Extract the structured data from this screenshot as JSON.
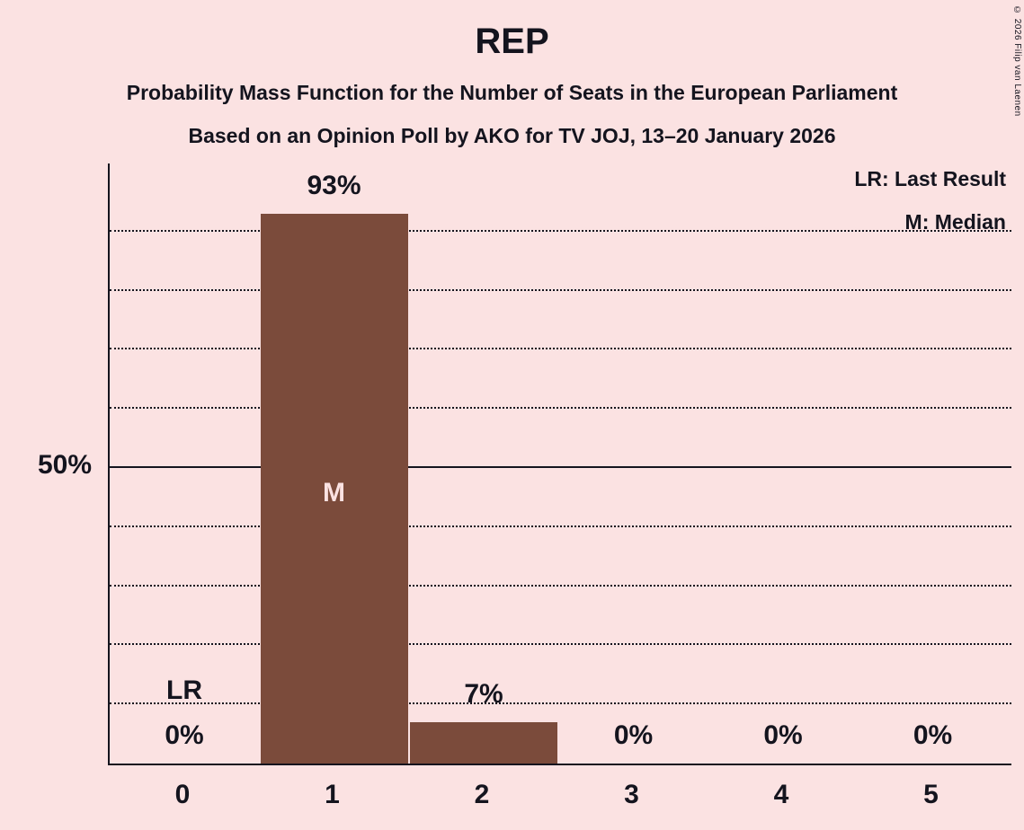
{
  "header": {
    "title": "REP",
    "subtitle1": "Probability Mass Function for the Number of Seats in the European Parliament",
    "subtitle2": "Based on an Opinion Poll by AKO for TV JOJ, 13–20 January 2026"
  },
  "legend": {
    "lr": "LR: Last Result",
    "m": "M: Median"
  },
  "y_axis_label": "50%",
  "copyright": "© 2026 Filip van Laenen",
  "chart_data": {
    "type": "bar",
    "title": "REP",
    "categories": [
      "0",
      "1",
      "2",
      "3",
      "4",
      "5"
    ],
    "values": [
      0,
      93,
      7,
      0,
      0,
      0
    ],
    "value_labels": [
      "0%",
      "93%",
      "7%",
      "0%",
      "0%",
      "0%"
    ],
    "annotations": [
      {
        "category": "0",
        "label": "LR"
      },
      {
        "category": "1",
        "label": "M"
      }
    ],
    "ylim": [
      0,
      100
    ],
    "gridlines_percent": [
      10,
      20,
      30,
      40,
      50,
      60,
      70,
      80,
      90
    ],
    "solid_line_percent": 50,
    "legend_entries": [
      "LR: Last Result",
      "M: Median"
    ],
    "colors": {
      "background": "#FBE2E2",
      "bar": "#7B4B3B",
      "text": "#14141E",
      "median_text": "#FBE2E2"
    }
  }
}
